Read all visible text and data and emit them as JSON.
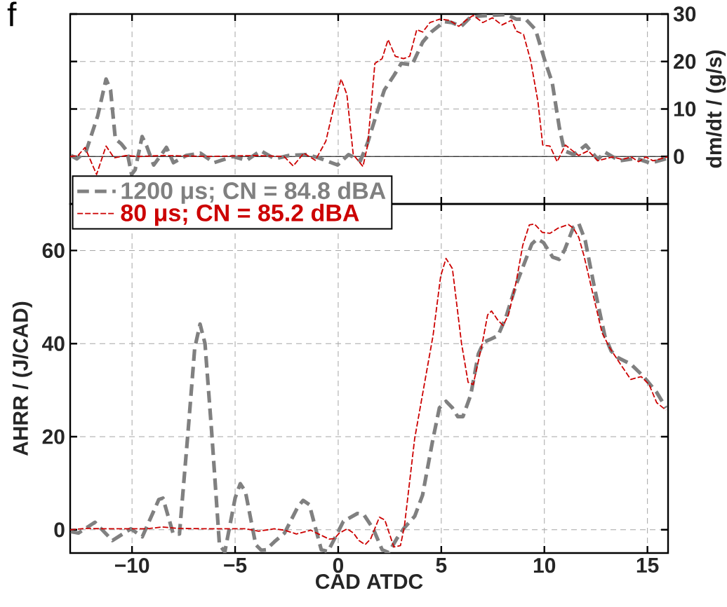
{
  "chart_data": [
    {
      "type": "line",
      "annotations": [
        "f"
      ],
      "ylabel": "dm/dt / (g/s)",
      "xlim": [
        -13,
        16
      ],
      "ylim": [
        -10,
        30
      ],
      "xticks": [
        -10,
        -5,
        0,
        5,
        10,
        15
      ],
      "yticks": [
        0,
        10,
        20,
        30
      ],
      "tick_labels": "y",
      "grid": true,
      "line_style": "dashed",
      "ref_lines": [
        {
          "axis": "y",
          "value": 0,
          "color": "#000000",
          "line_style": "solid"
        }
      ],
      "series": [
        {
          "color": "#808080",
          "x": [
            -12.96,
            -12.67,
            -12.22,
            -11.66,
            -11.26,
            -11.04,
            -10.81,
            -10.53,
            -10.25,
            -10.02,
            -9.85,
            -9.51,
            -9.29,
            -8.95,
            -8.61,
            -8.33,
            -7.99,
            -7.37,
            -6.69,
            -6.02,
            -5.11,
            -4.44,
            -3.76,
            -3.08,
            -2.4,
            -1.5,
            -0.94,
            -0.03,
            0.5,
            1.08,
            1.43,
            1.9,
            2.24,
            2.71,
            3.06,
            3.58,
            4.1,
            4.51,
            5.15,
            5.5,
            5.97,
            6.43,
            7.24,
            8.17,
            8.64,
            9.1,
            9.57,
            10.03,
            10.38,
            10.73,
            10.97,
            11.43,
            12.01,
            12.59,
            12.94,
            13.64,
            14.45,
            15.15,
            15.97
          ],
          "values": [
            0.2,
            -0.5,
            1.2,
            8.6,
            16.3,
            14,
            3.7,
            2.7,
            1.2,
            -3.8,
            -2.8,
            4.2,
            2.2,
            -1.8,
            0.2,
            1.9,
            -1.3,
            0.2,
            0.7,
            -1.3,
            0,
            -0.8,
            1.2,
            -0.5,
            0.2,
            0.4,
            -0.3,
            -1.8,
            0.4,
            -0.9,
            2.9,
            9.5,
            14,
            17.1,
            19.6,
            19.3,
            24.1,
            26.2,
            28.4,
            28.2,
            27.4,
            29.4,
            29.7,
            29.9,
            28.9,
            28.9,
            26.7,
            20.1,
            15.6,
            6,
            1.2,
            0.4,
            2.4,
            -0.6,
            0.9,
            -0.9,
            -0.4,
            -1.4,
            -0.4
          ]
        },
        {
          "color": "#cc0000",
          "x": [
            -13,
            -12.62,
            -12.28,
            -11.72,
            -11.26,
            -10.87,
            -10.3,
            -9.63,
            -8.5,
            -6.24,
            -3.98,
            -2.63,
            -2.18,
            -1.67,
            -1.11,
            -0.6,
            -0.15,
            0.14,
            0.42,
            0.73,
            1.2,
            1.43,
            1.78,
            2.13,
            2.42,
            2.77,
            3.17,
            3.47,
            3.81,
            4.1,
            4.45,
            4.92,
            5.38,
            5.85,
            6.2,
            6.55,
            7.01,
            7.48,
            7.94,
            8.41,
            8.64,
            8.99,
            9.34,
            9.69,
            9.92,
            10.27,
            10.62,
            11.02,
            11.66,
            12.13,
            12.59,
            13.29,
            13.76,
            14.22,
            14.57,
            14.92,
            15.27,
            15.97
          ],
          "values": [
            0,
            0.2,
            1.9,
            -3.8,
            2.2,
            -0.3,
            0.2,
            0,
            0.2,
            0,
            0.2,
            0,
            -2,
            0.7,
            -0.8,
            3.2,
            11.6,
            16.3,
            13.1,
            0.4,
            -2.1,
            2.4,
            19.6,
            20.6,
            24.6,
            21.1,
            20.6,
            21.1,
            26.7,
            26.2,
            28.2,
            28.9,
            28.7,
            27.4,
            28.7,
            29.7,
            28.2,
            29.2,
            27.7,
            28.7,
            26.4,
            25.7,
            20.1,
            11.5,
            2.4,
            2.2,
            -1.1,
            2.4,
            0.2,
            1.2,
            -0.9,
            -0.1,
            -0.6,
            -0.1,
            -1.1,
            -0.1,
            -0.9,
            -0.1
          ]
        }
      ]
    },
    {
      "type": "line",
      "xlabel": "CAD ATDC",
      "ylabel": "AHRR / (J/CAD)",
      "xlim": [
        -13,
        16
      ],
      "ylim": [
        -5,
        70
      ],
      "xticks": [
        {
          "value": -10,
          "label": "−10"
        },
        {
          "value": -5,
          "label": "−5"
        },
        0,
        5,
        10,
        15
      ],
      "yticks": [
        0,
        20,
        40,
        60
      ],
      "grid": true,
      "legend": "top left",
      "line_style": "dashed",
      "series": [
        {
          "name": "1200 μs; CN = 84.8 dBA",
          "color": "#808080",
          "x": [
            -12.97,
            -12.6,
            -11.8,
            -10.95,
            -10.06,
            -9.5,
            -8.7,
            -8.5,
            -8.0,
            -7.7,
            -7.28,
            -6.96,
            -6.7,
            -6.46,
            -6.14,
            -5.76,
            -5.5,
            -5.0,
            -4.75,
            -4.5,
            -4.0,
            -3.73,
            -3.5,
            -3.1,
            -2.6,
            -1.96,
            -1.7,
            -1.4,
            -0.82,
            -0.5,
            0,
            0.25,
            0.93,
            1.25,
            1.7,
            2.13,
            2.45,
            2.83,
            3.2,
            3.71,
            4.09,
            4.6,
            4.91,
            5.23,
            5.54,
            5.8,
            6.05,
            6.43,
            6.8,
            7.06,
            7.37,
            7.75,
            8.13,
            8.64,
            9.39,
            9.65,
            9.96,
            10.4,
            10.72,
            10.97,
            11.41,
            11.67,
            11.98,
            12.42,
            12.93,
            13.24,
            13.56,
            14.19,
            14.82,
            15.45,
            15.9
          ],
          "values": [
            -0.4,
            -0.7,
            1.6,
            -2.3,
            0.2,
            -1.5,
            6.5,
            6.8,
            -0.9,
            -0.9,
            21.2,
            39,
            44.2,
            40,
            21.2,
            -3.2,
            -4.8,
            6.8,
            9.9,
            8.2,
            -3.2,
            -4.4,
            -4.3,
            -2.6,
            -0.7,
            4.9,
            6.3,
            5.4,
            -4.3,
            -4.7,
            -0.4,
            1.8,
            3.5,
            3.2,
            0.2,
            -4.3,
            -4.9,
            -2,
            0.4,
            2.9,
            7.4,
            19.6,
            26.2,
            27.6,
            26.2,
            24.3,
            24.3,
            29,
            37.8,
            40.3,
            40.9,
            41.7,
            45.6,
            52.8,
            61.4,
            62.5,
            61.7,
            58.6,
            58.1,
            60,
            65,
            65.8,
            62.2,
            52.2,
            41.7,
            38.4,
            37,
            35.6,
            32.9,
            29.5,
            26.2
          ]
        },
        {
          "name": "80 μs; CN = 85.2 dBA",
          "color": "#cc0000",
          "x": [
            -13,
            -12.2,
            -11.3,
            -10.06,
            -9.3,
            -8.54,
            -7.78,
            -6.27,
            -4.49,
            -3.86,
            -3.1,
            -2.6,
            -2.03,
            -1.33,
            -0.82,
            -0.44,
            -0.19,
            0.06,
            0.44,
            0.74,
            1.0,
            1.31,
            1.57,
            2.0,
            2.26,
            2.7,
            3.02,
            3.21,
            3.71,
            4.22,
            4.6,
            4.97,
            5.23,
            5.54,
            5.98,
            6.3,
            6.55,
            6.99,
            7.25,
            7.44,
            7.75,
            8.0,
            8.26,
            8.64,
            8.95,
            9.27,
            9.52,
            9.9,
            10.28,
            10.66,
            11.16,
            11.41,
            11.67,
            11.92,
            12.3,
            12.8,
            13.18,
            13.69,
            14.19,
            14.7,
            15.08,
            15.45,
            15.9
          ],
          "values": [
            0,
            0.3,
            0.2,
            0.2,
            0.2,
            0.6,
            0.3,
            0.2,
            0.2,
            -0.3,
            0.2,
            -0.1,
            -0.9,
            -0.1,
            -1.2,
            -2,
            -1.9,
            -0.7,
            0.2,
            -0.7,
            -2.3,
            -3.2,
            -2,
            2.7,
            2.1,
            -3.7,
            -3.4,
            0.7,
            19.6,
            32.3,
            41.7,
            54.5,
            58.3,
            56.1,
            40.1,
            31.7,
            31.2,
            40.1,
            46.2,
            47,
            45,
            43.9,
            46.2,
            53.4,
            61.1,
            65.5,
            65.7,
            63.9,
            63.7,
            64.8,
            65.6,
            64.8,
            62.8,
            58.9,
            51.7,
            42.3,
            39,
            35.6,
            32.3,
            32.9,
            31.2,
            27.3,
            25.7
          ]
        }
      ]
    }
  ]
}
